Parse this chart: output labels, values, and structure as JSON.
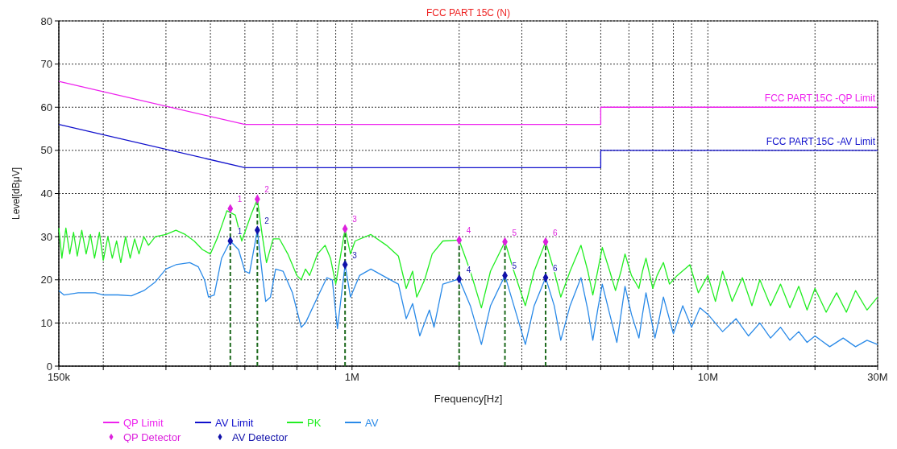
{
  "chart_data": {
    "type": "line",
    "title": "FCC PART 15C (N)",
    "xlabel": "Frequency[Hz]",
    "ylabel": "Level[dBμV]",
    "log": "x",
    "xlim": [
      150000,
      30000000
    ],
    "ylim": [
      0,
      80
    ],
    "xticks": [
      {
        "value": 150000,
        "label": "150k"
      },
      {
        "value": 200000,
        "label": null
      },
      {
        "value": 300000,
        "label": null
      },
      {
        "value": 400000,
        "label": null
      },
      {
        "value": 500000,
        "label": null
      },
      {
        "value": 600000,
        "label": null
      },
      {
        "value": 700000,
        "label": null
      },
      {
        "value": 800000,
        "label": null
      },
      {
        "value": 900000,
        "label": null
      },
      {
        "value": 1000000,
        "label": "1M"
      },
      {
        "value": 2000000,
        "label": null
      },
      {
        "value": 3000000,
        "label": null
      },
      {
        "value": 4000000,
        "label": null
      },
      {
        "value": 5000000,
        "label": null
      },
      {
        "value": 6000000,
        "label": null
      },
      {
        "value": 7000000,
        "label": null
      },
      {
        "value": 8000000,
        "label": null
      },
      {
        "value": 9000000,
        "label": null
      },
      {
        "value": 10000000,
        "label": "10M"
      },
      {
        "value": 20000000,
        "label": null
      },
      {
        "value": 30000000,
        "label": "30M"
      }
    ],
    "yticks": [
      0,
      10,
      20,
      30,
      40,
      50,
      60,
      70,
      80
    ],
    "grid": true,
    "legend": "bottom",
    "series": [
      {
        "name": "QP Limit",
        "color": "#ee22ee",
        "x": [
          150000,
          500000,
          5000000,
          5000000,
          30000000
        ],
        "values": [
          66,
          56,
          56,
          60,
          60
        ]
      },
      {
        "name": "AV Limit",
        "color": "#1010cc",
        "x": [
          150000,
          500000,
          5000000,
          5000000,
          30000000
        ],
        "values": [
          56,
          46,
          46,
          50,
          50
        ]
      },
      {
        "name": "PK",
        "color": "#22ee22",
        "x": [
          150000,
          153000,
          157000,
          161000,
          165000,
          169000,
          174000,
          179000,
          184000,
          189000,
          195000,
          200000,
          206000,
          212000,
          218000,
          224000,
          231000,
          238000,
          245000,
          252000,
          260000,
          268000,
          280000,
          300000,
          320000,
          340000,
          360000,
          380000,
          400000,
          420000,
          445000,
          470000,
          490000,
          520000,
          542000,
          560000,
          575000,
          600000,
          625000,
          660000,
          700000,
          720000,
          740000,
          760000,
          800000,
          840000,
          870000,
          900000,
          956000,
          990000,
          1020000,
          1130000,
          1250000,
          1350000,
          1420000,
          1480000,
          1520000,
          1600000,
          1680000,
          1800000,
          2000000,
          2150000,
          2310000,
          2450000,
          2690000,
          2850000,
          3070000,
          3250000,
          3500000,
          3700000,
          3860000,
          4100000,
          4400000,
          4600000,
          4750000,
          4900000,
          5050000,
          5300000,
          5500000,
          5700000,
          5850000,
          6100000,
          6400000,
          6550000,
          6700000,
          7000000,
          7200000,
          7500000,
          7800000,
          8200000,
          8900000,
          9400000,
          10000000,
          10500000,
          11000000,
          11700000,
          12500000,
          13300000,
          14000000,
          15000000,
          16000000,
          17000000,
          18000000,
          19000000,
          20000000,
          21500000,
          23000000,
          24500000,
          26000000,
          28000000,
          30000000
        ],
        "values": [
          32,
          25,
          32,
          26,
          31,
          25.5,
          31.5,
          26,
          30.5,
          25,
          31,
          24.5,
          30,
          25,
          29,
          24,
          30,
          25,
          29.5,
          26,
          30,
          28,
          30,
          30.5,
          31.5,
          30.5,
          29,
          27,
          26,
          30,
          36,
          35,
          29,
          35,
          38.7,
          30,
          24,
          29.5,
          29.5,
          26,
          21,
          20,
          22.5,
          21,
          26,
          28,
          25,
          19,
          31.8,
          26,
          29,
          30.5,
          28,
          25.5,
          18,
          22,
          16,
          20,
          26,
          29,
          29.2,
          22,
          13.5,
          22,
          28.8,
          22,
          14,
          22,
          28.8,
          22,
          16,
          22,
          28,
          22,
          16.5,
          22,
          27.5,
          22,
          17.5,
          22,
          26,
          21,
          18,
          22,
          25,
          18,
          21,
          24,
          19,
          21,
          23.5,
          17,
          21,
          15,
          22,
          15,
          20.5,
          14,
          20,
          14,
          19,
          13.5,
          18.5,
          13,
          18,
          12.5,
          17,
          12.5,
          17.5,
          13,
          16
        ]
      },
      {
        "name": "AV",
        "color": "#2a8ae8",
        "x": [
          150000,
          155000,
          170000,
          190000,
          200000,
          220000,
          240000,
          260000,
          280000,
          300000,
          320000,
          350000,
          370000,
          385000,
          395000,
          410000,
          430000,
          455000,
          480000,
          500000,
          515000,
          542000,
          560000,
          572000,
          590000,
          610000,
          640000,
          680000,
          720000,
          740000,
          800000,
          850000,
          880000,
          910000,
          956000,
          990000,
          1050000,
          1130000,
          1250000,
          1350000,
          1420000,
          1480000,
          1550000,
          1650000,
          1700000,
          1800000,
          2000000,
          2150000,
          2310000,
          2450000,
          2690000,
          2850000,
          3070000,
          3250000,
          3500000,
          3700000,
          3860000,
          4100000,
          4400000,
          4600000,
          4750000,
          4900000,
          5050000,
          5300000,
          5550000,
          5700000,
          5850000,
          6100000,
          6400000,
          6550000,
          6700000,
          7100000,
          7300000,
          7500000,
          8000000,
          8500000,
          9000000,
          9500000,
          10000000,
          11000000,
          12000000,
          13000000,
          14000000,
          15000000,
          16000000,
          17000000,
          18000000,
          19000000,
          20000000,
          22000000,
          24000000,
          26000000,
          28000000,
          30000000
        ],
        "values": [
          17.5,
          16.5,
          17,
          17,
          16.5,
          16.5,
          16.3,
          17.5,
          19.5,
          22.5,
          23.5,
          24,
          23,
          20,
          16,
          16.5,
          25,
          29,
          27,
          22,
          21.5,
          31.5,
          21,
          15,
          16,
          22.5,
          22,
          17,
          9,
          10,
          16,
          20.5,
          20,
          8.7,
          23.5,
          16,
          21,
          22.5,
          20.5,
          19,
          11,
          14.5,
          7,
          13,
          9,
          19,
          20.2,
          14,
          5,
          14,
          21,
          14,
          5,
          14,
          20.5,
          14,
          6,
          14,
          20.5,
          13,
          6,
          13,
          19,
          12,
          5.5,
          12,
          18.5,
          12,
          6.5,
          12,
          17,
          6.5,
          11,
          16,
          7.5,
          14,
          9,
          13.5,
          12,
          8,
          11,
          7,
          10,
          6.5,
          9,
          6,
          8,
          5.5,
          7,
          4.5,
          6.5,
          4.5,
          6,
          5
        ]
      },
      {
        "name": "QP Detector",
        "type": "scatter",
        "marker": "diamond",
        "color": "#dd22dd",
        "x": [
          455000,
          542000,
          956000,
          2000000,
          2690000,
          3500000
        ],
        "values": [
          36.5,
          38.7,
          31.8,
          29.2,
          28.8,
          28.8
        ]
      },
      {
        "name": "AV Detector",
        "type": "scatter",
        "marker": "diamond",
        "color": "#1111aa",
        "x": [
          455000,
          542000,
          956000,
          2000000,
          2690000,
          3500000
        ],
        "values": [
          29,
          31.5,
          23.5,
          20.2,
          21,
          20.5
        ]
      }
    ],
    "ref_lines": [
      {
        "axis": "x",
        "value": 455000,
        "color": "#1f6b1f",
        "line_style": "dashed"
      },
      {
        "axis": "x",
        "value": 542000,
        "color": "#1f6b1f",
        "line_style": "dashed"
      },
      {
        "axis": "x",
        "value": 956000,
        "color": "#1f6b1f",
        "line_style": "dashed"
      },
      {
        "axis": "x",
        "value": 2000000,
        "color": "#1f6b1f",
        "line_style": "dashed"
      },
      {
        "axis": "x",
        "value": 2690000,
        "color": "#1f6b1f",
        "line_style": "dashed"
      },
      {
        "axis": "x",
        "value": 3500000,
        "color": "#1f6b1f",
        "line_style": "dashed"
      }
    ],
    "annotations": [
      {
        "text": "FCC PART 15C -QP Limit",
        "x": 30000000,
        "y": 60
      },
      {
        "text": "FCC PART 15C -AV Limit",
        "x": 30000000,
        "y": 50
      },
      {
        "text": "1",
        "x": 455000,
        "y": 36.5
      },
      {
        "text": "2",
        "x": 542000,
        "y": 38.7
      },
      {
        "text": "3",
        "x": 956000,
        "y": 31.8
      },
      {
        "text": "4",
        "x": 2000000,
        "y": 29.2
      },
      {
        "text": "5",
        "x": 2690000,
        "y": 28.8
      },
      {
        "text": "6",
        "x": 3500000,
        "y": 28.8
      },
      {
        "text": "1",
        "x": 455000,
        "y": 29
      },
      {
        "text": "2",
        "x": 542000,
        "y": 31.5
      },
      {
        "text": "3",
        "x": 956000,
        "y": 23.5
      },
      {
        "text": "4",
        "x": 2000000,
        "y": 20.2
      },
      {
        "text": "5",
        "x": 2690000,
        "y": 21
      },
      {
        "text": "6",
        "x": 3500000,
        "y": 20.5
      }
    ]
  }
}
